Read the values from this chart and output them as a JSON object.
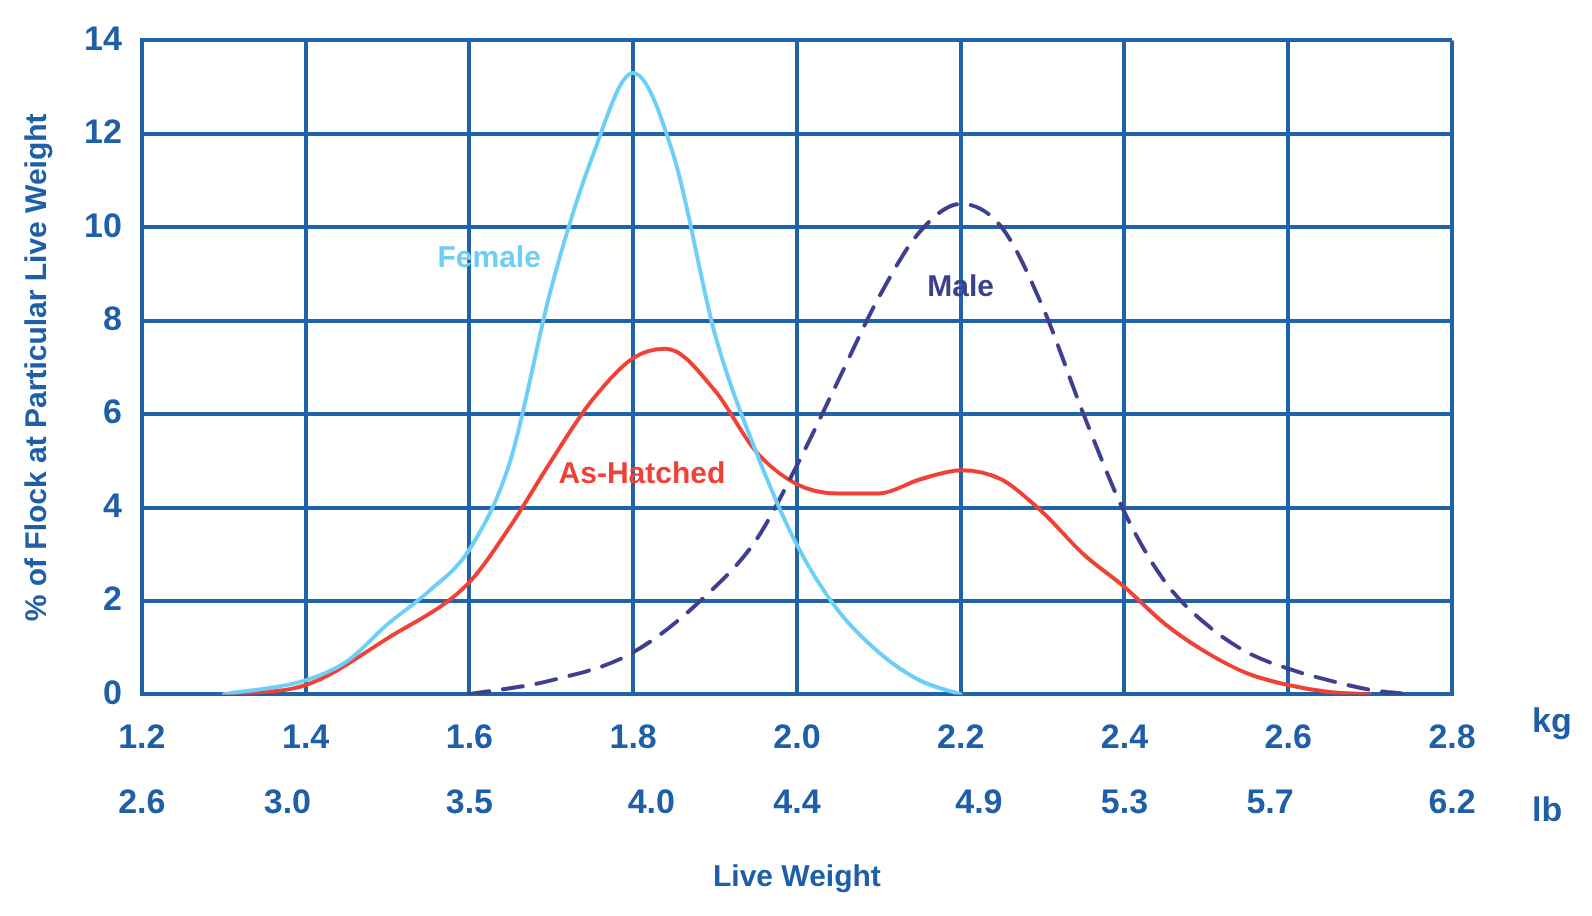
{
  "chart_data": {
    "type": "line",
    "ylabel": "% of Flock at Particular Live Weight",
    "xlabel": "Live Weight",
    "xlim": [
      1.2,
      2.8
    ],
    "xticks": [
      1.2,
      1.4,
      1.6,
      1.8,
      {
        "value": 2.0,
        "label": "2.0"
      },
      2.2,
      2.4,
      2.6,
      2.8
    ],
    "x2lim": [
      2.6,
      6.2
    ],
    "x2ticks": [
      2.6,
      {
        "value": 3.0,
        "label": "3.0"
      },
      3.5,
      {
        "value": 4.0,
        "label": "4.0"
      },
      4.4,
      4.9,
      5.3,
      5.7,
      6.2
    ],
    "ylim": [
      0,
      14
    ],
    "yticks": [
      0,
      2,
      4,
      6,
      8,
      10,
      12,
      14
    ],
    "grid": true,
    "legend": false,
    "marker": "none",
    "annotations": [
      "kg",
      "lb"
    ],
    "series": [
      {
        "name": "Female",
        "color": "#6dcff6",
        "line_style": "solid",
        "x": [
          1.3,
          1.4,
          1.45,
          1.5,
          1.55,
          1.6,
          1.65,
          1.7,
          1.75,
          1.8,
          1.85,
          1.9,
          1.95,
          2.0,
          2.05,
          2.1,
          2.15,
          2.2
        ],
        "values": [
          0,
          0.3,
          0.7,
          1.5,
          2.2,
          3.1,
          5.0,
          8.7,
          11.5,
          13.3,
          11.5,
          7.7,
          5.2,
          3.2,
          1.8,
          0.9,
          0.3,
          0
        ]
      },
      {
        "name": "Male",
        "color": "#3f3f8f",
        "line_style": "dashed",
        "x": [
          1.6,
          1.7,
          1.8,
          1.9,
          1.95,
          2.0,
          2.05,
          2.1,
          2.15,
          2.2,
          2.25,
          2.3,
          2.35,
          2.4,
          2.45,
          2.5,
          2.55,
          2.6,
          2.65,
          2.7,
          2.75
        ],
        "values": [
          0,
          0.3,
          0.9,
          2.3,
          3.3,
          4.9,
          6.7,
          8.5,
          9.9,
          10.5,
          10.0,
          8.3,
          6.0,
          3.9,
          2.4,
          1.5,
          0.9,
          0.55,
          0.3,
          0.1,
          0
        ]
      },
      {
        "name": "As-Hatched",
        "color": "#ef4136",
        "line_style": "solid",
        "x": [
          1.3,
          1.4,
          1.5,
          1.6,
          1.65,
          1.7,
          1.75,
          1.8,
          1.84,
          1.9,
          1.95,
          2.0,
          2.05,
          2.1,
          2.15,
          2.2,
          2.25,
          2.3,
          2.35,
          2.4,
          2.45,
          2.5,
          2.55,
          2.6,
          2.65,
          2.7
        ],
        "values": [
          0,
          0.2,
          1.2,
          2.4,
          3.6,
          5.0,
          6.3,
          7.2,
          7.4,
          6.5,
          5.2,
          4.5,
          4.3,
          4.3,
          4.6,
          4.8,
          4.6,
          3.9,
          3.0,
          2.3,
          1.5,
          0.9,
          0.45,
          0.2,
          0.05,
          0
        ]
      }
    ]
  }
}
